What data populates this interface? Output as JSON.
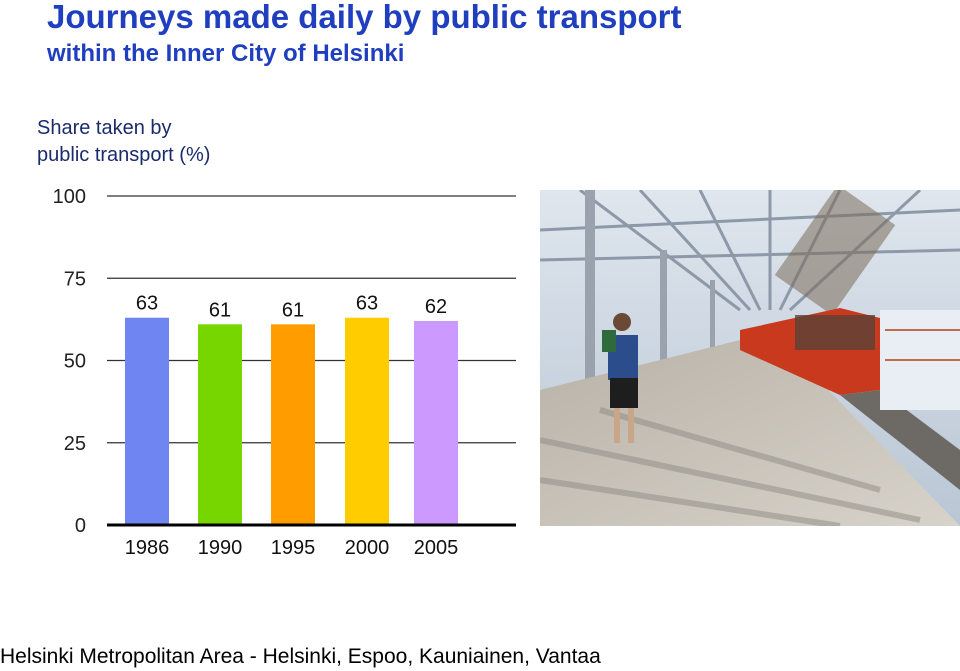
{
  "header": {
    "title": "Journeys made daily by public transport",
    "subtitle": "within the Inner City of Helsinki"
  },
  "chart_data": {
    "type": "bar",
    "ylabel_lines": [
      "Share taken by",
      "public transport (%)"
    ],
    "categories": [
      "1986",
      "1990",
      "1995",
      "2000",
      "2005"
    ],
    "values": [
      63,
      61,
      61,
      63,
      62
    ],
    "data_labels": [
      "63",
      "61",
      "61",
      "63",
      "62"
    ],
    "bar_colors": [
      "#6f86f2",
      "#77d600",
      "#ff9d00",
      "#ffcc00",
      "#cc99ff"
    ],
    "yticks": [
      0,
      25,
      50,
      75,
      100
    ],
    "ylim": [
      0,
      100
    ],
    "grid": true,
    "xlabel": ""
  },
  "photo": {
    "description_icon": "metro-station-photo"
  },
  "footer": {
    "text": "Helsinki Metropolitan Area - Helsinki, Espoo, Kauniainen, Vantaa"
  }
}
